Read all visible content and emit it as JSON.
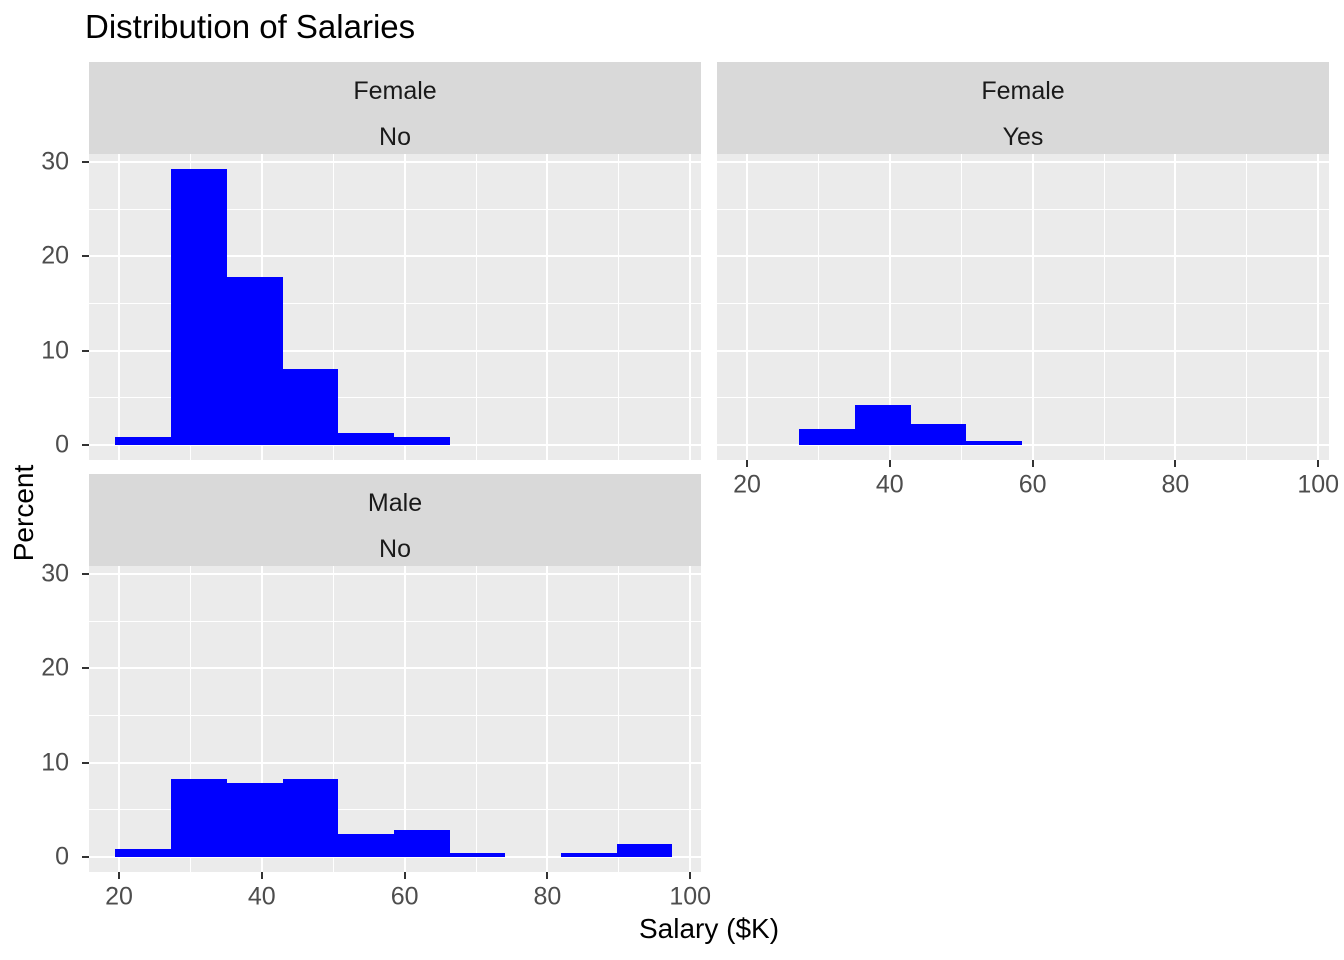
{
  "title": "Distribution of Salaries",
  "axes": {
    "x_label": "Salary ($K)",
    "y_label": "Percent",
    "x_ticks": [
      20,
      40,
      60,
      80,
      100
    ],
    "y_ticks": [
      0,
      10,
      20,
      30
    ]
  },
  "chart_data": {
    "type": "bar",
    "subtype": "faceted-histogram",
    "title": "Distribution of Salaries",
    "xlabel": "Salary ($K)",
    "ylabel": "Percent",
    "xlim": [
      15.7,
      101.7
    ],
    "ylim": [
      -1.6,
      30.9
    ],
    "grid": "on",
    "bin_start": 19.5,
    "bin_width": 7.8,
    "bin_edges": [
      19.5,
      27.3,
      35.1,
      42.9,
      50.7,
      58.5,
      66.3,
      74.1,
      81.9,
      89.7,
      97.5
    ],
    "x_minor_gridlines": [
      30,
      50,
      70,
      90
    ],
    "y_minor_gridlines": [
      5,
      15,
      25
    ],
    "facets": [
      {
        "strip": [
          "Female",
          "No"
        ],
        "row": 0,
        "col": 0,
        "show_x_axis": false,
        "show_y_axis": true,
        "values": [
          0.9,
          29.3,
          17.8,
          8.1,
          1.3,
          0.8,
          0,
          0,
          0,
          0
        ]
      },
      {
        "strip": [
          "Female",
          "Yes"
        ],
        "row": 0,
        "col": 1,
        "show_x_axis": true,
        "show_y_axis": false,
        "values": [
          0,
          1.7,
          4.2,
          2.2,
          0.4,
          0,
          0,
          0,
          0,
          0
        ]
      },
      {
        "strip": [
          "Male",
          "No"
        ],
        "row": 1,
        "col": 0,
        "show_x_axis": true,
        "show_y_axis": true,
        "values": [
          0.9,
          8.3,
          7.8,
          8.3,
          2.4,
          2.9,
          0.4,
          0,
          0.4,
          1.4
        ]
      }
    ],
    "colors": {
      "bar": "#0000FF",
      "panel_background": "#EBEBEB",
      "strip_background": "#D9D9D9",
      "gridline": "#FFFFFF",
      "tick_mark": "#333333",
      "tick_text": "#4D4D4D",
      "text": "#000000"
    }
  }
}
